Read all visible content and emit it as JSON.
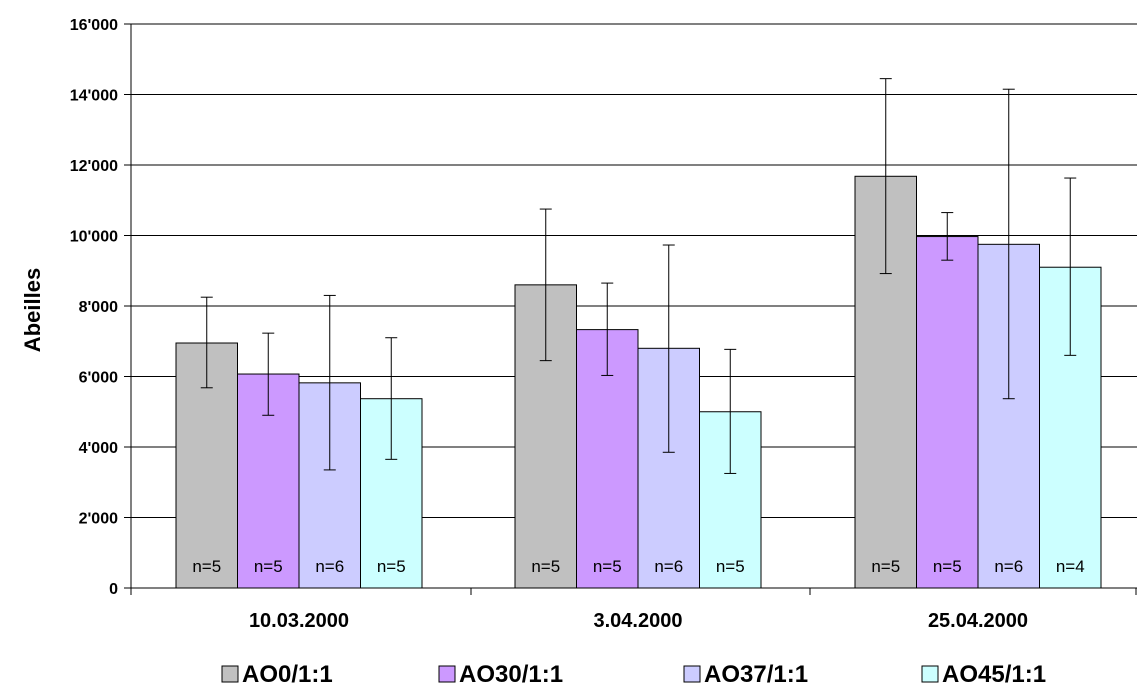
{
  "chart_data": {
    "type": "bar",
    "ylabel": "Abeilles",
    "xlabel": "",
    "ylim": [
      0,
      16000
    ],
    "yticks": [
      0,
      2000,
      4000,
      6000,
      8000,
      10000,
      12000,
      14000,
      16000
    ],
    "ytick_labels": [
      "0",
      "2'000",
      "4'000",
      "6'000",
      "8'000",
      "10'000",
      "12'000",
      "14'000",
      "16'000"
    ],
    "grid": true,
    "legend_position": "bottom",
    "categories": [
      "10.03.2000",
      "3.04.2000",
      "25.04.2000"
    ],
    "series": [
      {
        "name": "AO0/1:1",
        "color": "#c0c0c0",
        "values": [
          6950,
          8600,
          11680
        ],
        "err_low": [
          5680,
          6450,
          8920
        ],
        "err_high": [
          8250,
          10750,
          14450
        ],
        "n_labels": [
          "n=5",
          "n=5",
          "n=5"
        ]
      },
      {
        "name": "AO30/1:1",
        "color": "#cc99ff",
        "values": [
          6070,
          7330,
          9970
        ],
        "err_low": [
          4900,
          6030,
          9300
        ],
        "err_high": [
          7230,
          8650,
          10650
        ],
        "n_labels": [
          "n=5",
          "n=5",
          "n=5"
        ]
      },
      {
        "name": "AO37/1:1",
        "color": "#ccccff",
        "values": [
          5820,
          6800,
          9750
        ],
        "err_low": [
          3350,
          3850,
          5370
        ],
        "err_high": [
          8300,
          9730,
          14150
        ],
        "n_labels": [
          "n=6",
          "n=6",
          "n=6"
        ]
      },
      {
        "name": "AO45/1:1",
        "color": "#ccffff",
        "values": [
          5370,
          5000,
          9100
        ],
        "err_low": [
          3650,
          3250,
          6600
        ],
        "err_high": [
          7100,
          6770,
          11630
        ],
        "n_labels": [
          "n=5",
          "n=5",
          "n=4"
        ]
      }
    ]
  }
}
